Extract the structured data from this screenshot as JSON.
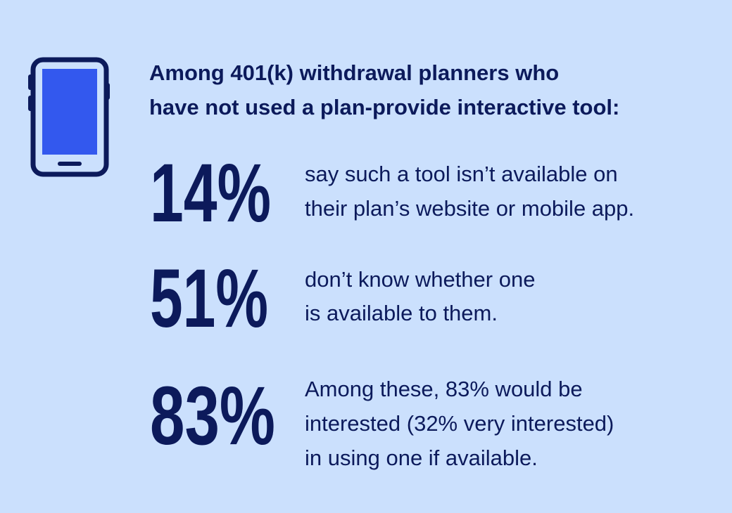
{
  "header": {
    "title_lines": [
      "Among 401(k) withdrawal planners who",
      "have not used a plan-provide interactive tool:"
    ]
  },
  "stats": [
    {
      "figure": "14%",
      "lines": [
        "say such a tool isn’t available on",
        "their plan’s website or mobile app."
      ]
    },
    {
      "figure": "51%",
      "lines": [
        "don’t know whether one",
        "is available to them."
      ]
    },
    {
      "figure": "83%",
      "lines": [
        "Among these, 83% would be",
        "interested (32% very interested)",
        "in using one if available."
      ]
    }
  ]
}
